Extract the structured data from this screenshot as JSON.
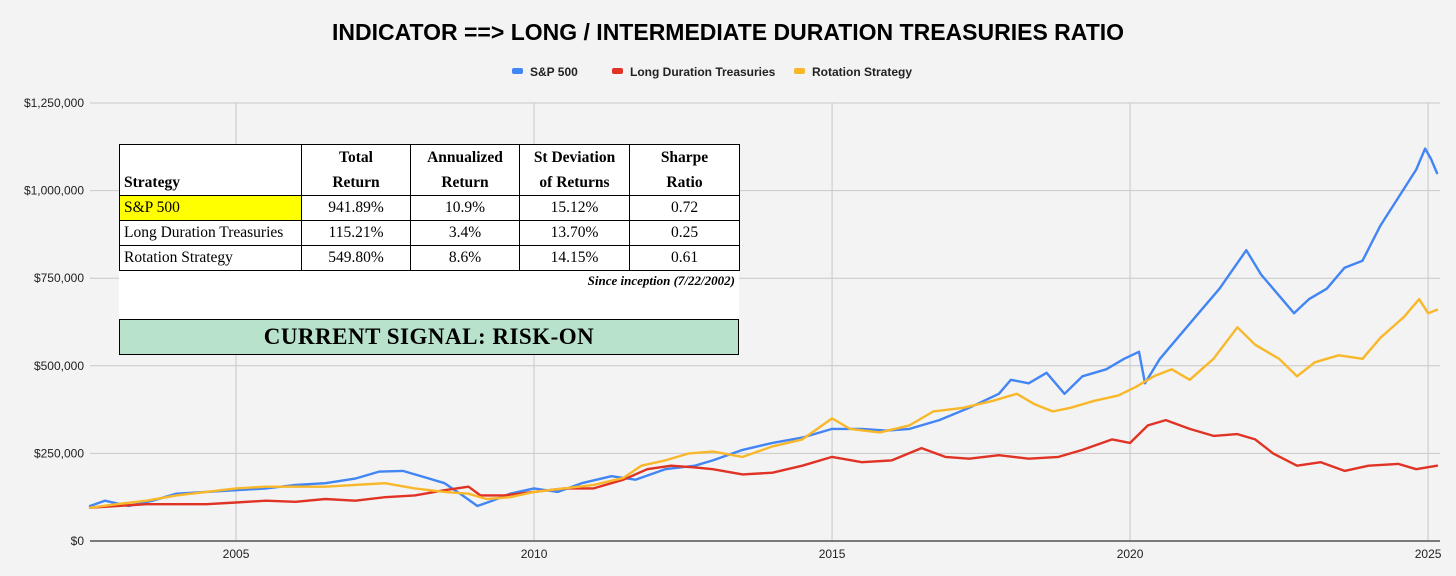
{
  "chart_data": {
    "type": "line",
    "title": "INDICATOR ==> LONG / INTERMEDIATE DURATION TREASURIES RATIO",
    "xlabel": "",
    "ylabel": "",
    "xlim": [
      2002.55,
      2025.2
    ],
    "ylim": [
      0,
      1250000
    ],
    "grid": true,
    "legend_position": "top-center",
    "x_ticks": [
      2005,
      2010,
      2015,
      2020,
      2025
    ],
    "y_ticks": [
      0,
      250000,
      500000,
      750000,
      1000000,
      1250000
    ],
    "y_tick_labels": [
      "$0",
      "$250,000",
      "$500,000",
      "$750,000",
      "$1,000,000",
      "$1,250,000"
    ],
    "series": [
      {
        "name": "S&P 500",
        "color": "#4285f4",
        "points": [
          [
            2002.55,
            100000
          ],
          [
            2002.8,
            115000
          ],
          [
            2003.2,
            100000
          ],
          [
            2003.6,
            115000
          ],
          [
            2004.0,
            135000
          ],
          [
            2004.5,
            140000
          ],
          [
            2005.0,
            145000
          ],
          [
            2005.5,
            150000
          ],
          [
            2006.0,
            160000
          ],
          [
            2006.5,
            165000
          ],
          [
            2007.0,
            178000
          ],
          [
            2007.4,
            198000
          ],
          [
            2007.8,
            200000
          ],
          [
            2008.2,
            180000
          ],
          [
            2008.5,
            165000
          ],
          [
            2008.8,
            130000
          ],
          [
            2009.05,
            100000
          ],
          [
            2009.3,
            115000
          ],
          [
            2009.6,
            135000
          ],
          [
            2010.0,
            150000
          ],
          [
            2010.4,
            140000
          ],
          [
            2010.8,
            165000
          ],
          [
            2011.3,
            185000
          ],
          [
            2011.7,
            175000
          ],
          [
            2012.2,
            205000
          ],
          [
            2012.7,
            215000
          ],
          [
            2013.0,
            230000
          ],
          [
            2013.5,
            260000
          ],
          [
            2014.0,
            280000
          ],
          [
            2014.5,
            295000
          ],
          [
            2015.0,
            320000
          ],
          [
            2015.5,
            320000
          ],
          [
            2015.9,
            315000
          ],
          [
            2016.3,
            320000
          ],
          [
            2016.8,
            345000
          ],
          [
            2017.3,
            380000
          ],
          [
            2017.8,
            420000
          ],
          [
            2018.0,
            460000
          ],
          [
            2018.3,
            450000
          ],
          [
            2018.6,
            480000
          ],
          [
            2018.9,
            420000
          ],
          [
            2019.2,
            470000
          ],
          [
            2019.6,
            490000
          ],
          [
            2019.9,
            520000
          ],
          [
            2020.15,
            540000
          ],
          [
            2020.25,
            450000
          ],
          [
            2020.5,
            520000
          ],
          [
            2020.8,
            580000
          ],
          [
            2021.1,
            640000
          ],
          [
            2021.5,
            720000
          ],
          [
            2021.95,
            830000
          ],
          [
            2022.2,
            760000
          ],
          [
            2022.5,
            700000
          ],
          [
            2022.75,
            650000
          ],
          [
            2023.0,
            690000
          ],
          [
            2023.3,
            720000
          ],
          [
            2023.6,
            780000
          ],
          [
            2023.9,
            800000
          ],
          [
            2024.2,
            900000
          ],
          [
            2024.5,
            980000
          ],
          [
            2024.8,
            1060000
          ],
          [
            2024.95,
            1120000
          ],
          [
            2025.05,
            1090000
          ],
          [
            2025.15,
            1050000
          ]
        ]
      },
      {
        "name": "Long Duration Treasuries",
        "color": "#e03325",
        "points": [
          [
            2002.55,
            95000
          ],
          [
            2003.0,
            100000
          ],
          [
            2003.5,
            105000
          ],
          [
            2004.0,
            105000
          ],
          [
            2004.5,
            105000
          ],
          [
            2005.0,
            110000
          ],
          [
            2005.5,
            115000
          ],
          [
            2006.0,
            112000
          ],
          [
            2006.5,
            120000
          ],
          [
            2007.0,
            115000
          ],
          [
            2007.5,
            125000
          ],
          [
            2008.0,
            130000
          ],
          [
            2008.5,
            145000
          ],
          [
            2008.9,
            155000
          ],
          [
            2009.1,
            130000
          ],
          [
            2009.5,
            130000
          ],
          [
            2010.0,
            140000
          ],
          [
            2010.5,
            150000
          ],
          [
            2011.0,
            150000
          ],
          [
            2011.5,
            175000
          ],
          [
            2011.9,
            205000
          ],
          [
            2012.3,
            215000
          ],
          [
            2012.7,
            210000
          ],
          [
            2013.0,
            205000
          ],
          [
            2013.5,
            190000
          ],
          [
            2014.0,
            195000
          ],
          [
            2014.5,
            215000
          ],
          [
            2015.0,
            240000
          ],
          [
            2015.5,
            225000
          ],
          [
            2016.0,
            230000
          ],
          [
            2016.5,
            265000
          ],
          [
            2016.9,
            240000
          ],
          [
            2017.3,
            235000
          ],
          [
            2017.8,
            245000
          ],
          [
            2018.3,
            235000
          ],
          [
            2018.8,
            240000
          ],
          [
            2019.2,
            260000
          ],
          [
            2019.7,
            290000
          ],
          [
            2020.0,
            280000
          ],
          [
            2020.3,
            330000
          ],
          [
            2020.6,
            345000
          ],
          [
            2021.0,
            320000
          ],
          [
            2021.4,
            300000
          ],
          [
            2021.8,
            305000
          ],
          [
            2022.1,
            290000
          ],
          [
            2022.4,
            250000
          ],
          [
            2022.8,
            215000
          ],
          [
            2023.2,
            225000
          ],
          [
            2023.6,
            200000
          ],
          [
            2024.0,
            215000
          ],
          [
            2024.5,
            220000
          ],
          [
            2024.8,
            205000
          ],
          [
            2025.15,
            215000
          ]
        ]
      },
      {
        "name": "Rotation Strategy",
        "color": "#f9b72a",
        "points": [
          [
            2002.55,
            95000
          ],
          [
            2003.0,
            105000
          ],
          [
            2003.5,
            115000
          ],
          [
            2004.0,
            130000
          ],
          [
            2004.5,
            140000
          ],
          [
            2005.0,
            150000
          ],
          [
            2005.5,
            155000
          ],
          [
            2006.0,
            155000
          ],
          [
            2006.5,
            155000
          ],
          [
            2007.0,
            160000
          ],
          [
            2007.5,
            165000
          ],
          [
            2008.0,
            150000
          ],
          [
            2008.5,
            140000
          ],
          [
            2008.9,
            135000
          ],
          [
            2009.2,
            120000
          ],
          [
            2009.6,
            125000
          ],
          [
            2010.0,
            140000
          ],
          [
            2010.5,
            150000
          ],
          [
            2011.0,
            160000
          ],
          [
            2011.5,
            180000
          ],
          [
            2011.8,
            215000
          ],
          [
            2012.2,
            230000
          ],
          [
            2012.6,
            250000
          ],
          [
            2013.0,
            255000
          ],
          [
            2013.5,
            240000
          ],
          [
            2014.0,
            270000
          ],
          [
            2014.5,
            290000
          ],
          [
            2015.0,
            350000
          ],
          [
            2015.3,
            320000
          ],
          [
            2015.8,
            310000
          ],
          [
            2016.3,
            330000
          ],
          [
            2016.7,
            370000
          ],
          [
            2017.2,
            380000
          ],
          [
            2017.7,
            400000
          ],
          [
            2018.1,
            420000
          ],
          [
            2018.4,
            390000
          ],
          [
            2018.7,
            370000
          ],
          [
            2019.0,
            380000
          ],
          [
            2019.4,
            400000
          ],
          [
            2019.8,
            415000
          ],
          [
            2020.1,
            440000
          ],
          [
            2020.4,
            470000
          ],
          [
            2020.7,
            490000
          ],
          [
            2021.0,
            460000
          ],
          [
            2021.4,
            520000
          ],
          [
            2021.8,
            610000
          ],
          [
            2022.1,
            560000
          ],
          [
            2022.5,
            520000
          ],
          [
            2022.8,
            470000
          ],
          [
            2023.1,
            510000
          ],
          [
            2023.5,
            530000
          ],
          [
            2023.9,
            520000
          ],
          [
            2024.2,
            580000
          ],
          [
            2024.6,
            640000
          ],
          [
            2024.85,
            690000
          ],
          [
            2025.0,
            650000
          ],
          [
            2025.15,
            660000
          ]
        ]
      }
    ]
  },
  "stats_table": {
    "headers": [
      [
        "",
        "Strategy"
      ],
      [
        "Total",
        "Return"
      ],
      [
        "Annualized",
        "Return"
      ],
      [
        "St Deviation",
        "of Returns"
      ],
      [
        "Sharpe",
        "Ratio"
      ]
    ],
    "rows": [
      [
        "S&P 500",
        "941.89%",
        "10.9%",
        "15.12%",
        "0.72"
      ],
      [
        "Long Duration Treasuries",
        "115.21%",
        "3.4%",
        "13.70%",
        "0.25"
      ],
      [
        "Rotation Strategy",
        "549.80%",
        "8.6%",
        "14.15%",
        "0.61"
      ]
    ],
    "highlight_color": "#ffff00",
    "since_inception": "Since inception (7/22/2002)",
    "signal": "CURRENT SIGNAL: RISK-ON"
  }
}
